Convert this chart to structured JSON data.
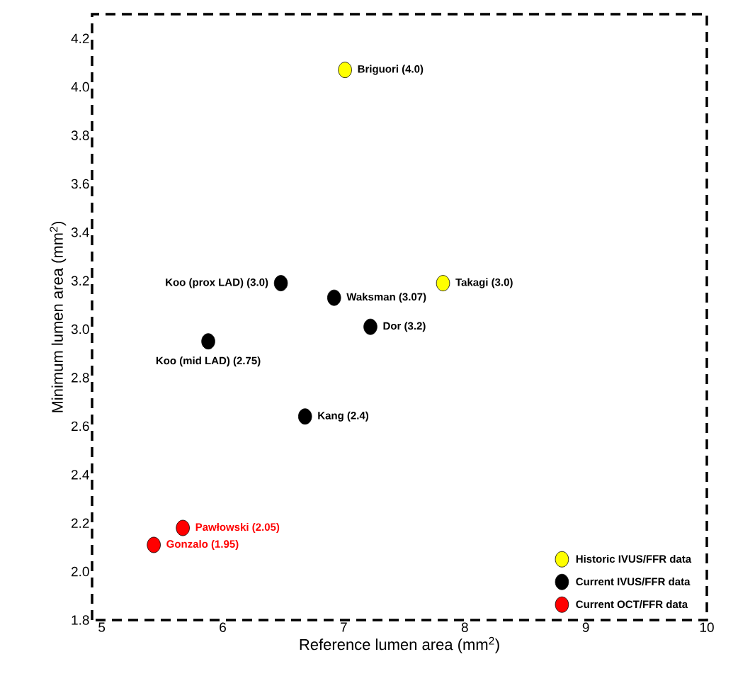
{
  "chart_data": {
    "type": "scatter",
    "xlabel": "Reference lumen area (mm$^{2}$)",
    "ylabel": "Minimum lumen area (mm$^{2}$)",
    "xlim": [
      4.92,
      10
    ],
    "xticks": [
      5,
      6,
      7,
      8,
      9,
      10
    ],
    "ylim": [
      1.8,
      4.3
    ],
    "yticks": [
      {
        "value": 1.8,
        "label": "1.8"
      },
      {
        "value": 2.0,
        "label": "2.0"
      },
      {
        "value": 2.2,
        "label": "2.2"
      },
      {
        "value": 2.4,
        "label": "2.4"
      },
      {
        "value": 2.6,
        "label": "2.6"
      },
      {
        "value": 2.8,
        "label": "2.8"
      },
      {
        "value": 3.0,
        "label": "3.0"
      },
      {
        "value": 3.2,
        "label": "3.2"
      },
      {
        "value": 3.4,
        "label": "3.4"
      },
      {
        "value": 3.6,
        "label": "3.6"
      },
      {
        "value": 3.8,
        "label": "3.8"
      },
      {
        "value": 4.0,
        "label": "4.0"
      },
      {
        "value": 4.2,
        "label": "4.2"
      }
    ],
    "legend": "bottom right",
    "series": [
      {
        "name": "Historic IVUS/FFR data",
        "color": "#ffff00",
        "x": [
          7.01,
          7.82
        ],
        "values": [
          4.07,
          3.19
        ]
      },
      {
        "name": "Current IVUS/FFR data",
        "color": "#000000",
        "x": [
          6.48,
          6.92,
          7.22,
          5.88,
          6.68
        ],
        "values": [
          3.19,
          3.13,
          3.01,
          2.95,
          2.64
        ]
      },
      {
        "name": "Current OCT/FFR data",
        "color": "#ff0000",
        "x": [
          5.67,
          5.43
        ],
        "values": [
          2.18,
          2.11
        ]
      }
    ],
    "annotations": [
      {
        "text": "Briguori (4.0)",
        "x": 7.01,
        "y": 4.07
      },
      {
        "text": "Takagi (3.0)",
        "x": 7.82,
        "y": 3.19
      },
      {
        "text": "Koo (prox LAD) (3.0)",
        "x": 6.48,
        "y": 3.19
      },
      {
        "text": "Waksman (3.07)",
        "x": 6.92,
        "y": 3.13
      },
      {
        "text": "Dor (3.2)",
        "x": 7.22,
        "y": 3.01
      },
      {
        "text": "Koo (mid LAD) (2.75)",
        "x": 5.88,
        "y": 2.95
      },
      {
        "text": "Kang (2.4)",
        "x": 6.68,
        "y": 2.64
      },
      {
        "text": "Pawłowski (2.05)",
        "x": 5.67,
        "y": 2.18
      },
      {
        "text": "Gonzalo (1.95)",
        "x": 5.43,
        "y": 2.11
      }
    ]
  }
}
